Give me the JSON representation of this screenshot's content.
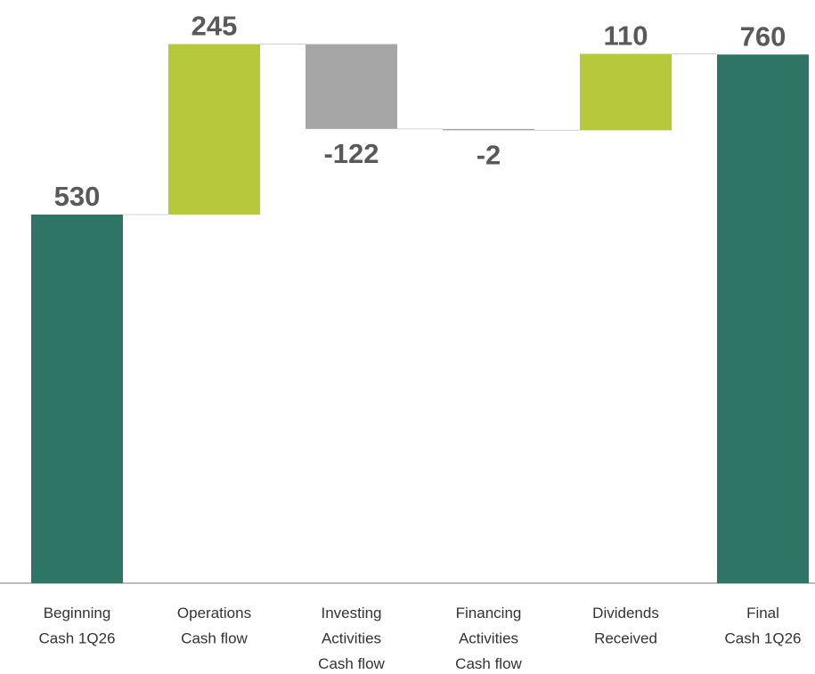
{
  "chart_data": {
    "type": "waterfall",
    "categories": [
      [
        "Beginning",
        "Cash 1Q26"
      ],
      [
        "Operations",
        "Cash flow"
      ],
      [
        "Investing",
        "Activities",
        "Cash flow"
      ],
      [
        "Financing",
        "Activities",
        "Cash flow"
      ],
      [
        "Dividends",
        "Received"
      ],
      [
        "Final",
        "Cash 1Q26"
      ]
    ],
    "values": [
      530,
      245,
      -122,
      -2,
      110,
      760
    ],
    "measures": [
      "total",
      "relative",
      "relative",
      "relative",
      "relative",
      "total"
    ],
    "colors": {
      "total": "#2e7566",
      "increase": "#b5c93a",
      "decrease": "#a6a6a6"
    },
    "ylim": [
      0,
      800
    ]
  }
}
